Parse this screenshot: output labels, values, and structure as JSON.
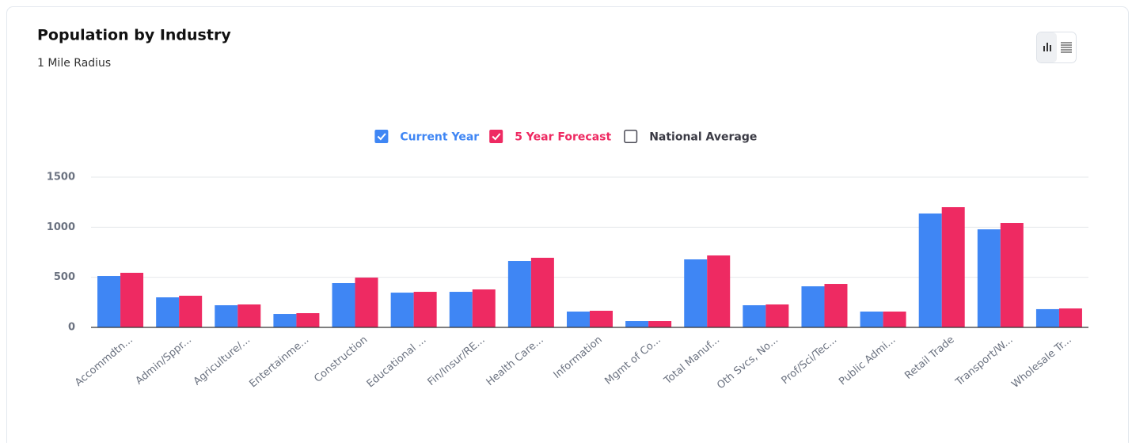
{
  "chart_data": {
    "type": "bar",
    "title": "Population by Industry",
    "subtitle": "1 Mile Radius",
    "categories": [
      "Accommdtn...",
      "Admin/Sppr...",
      "Agriculture/...",
      "Entertainme...",
      "Construction",
      "Educational ...",
      "Fin/Insur/RE...",
      "Health Care...",
      "Information",
      "Mgmt of Co...",
      "Total Manuf...",
      "Oth Svcs, No...",
      "Prof/Sci/Tec...",
      "Public Admi...",
      "Retail Trade",
      "Transport/W...",
      "Wholesale Tr..."
    ],
    "series": [
      {
        "name": "Current Year",
        "color": "#3f86f4",
        "values": [
          513,
          300,
          221,
          134,
          442,
          347,
          355,
          663,
          158,
          63,
          679,
          221,
          410,
          158,
          1137,
          979,
          182
        ]
      },
      {
        "name": "5 Year Forecast",
        "color": "#ee2a62",
        "values": [
          545,
          316,
          229,
          142,
          497,
          355,
          379,
          695,
          166,
          63,
          718,
          229,
          434,
          158,
          1200,
          1042,
          189
        ]
      }
    ],
    "unchecked_legend": [
      {
        "name": "National Average",
        "color": "#4a4a55"
      }
    ],
    "ylim": [
      0,
      1500
    ],
    "yticks": [
      0,
      500,
      1000,
      1500
    ],
    "grid": true
  }
}
